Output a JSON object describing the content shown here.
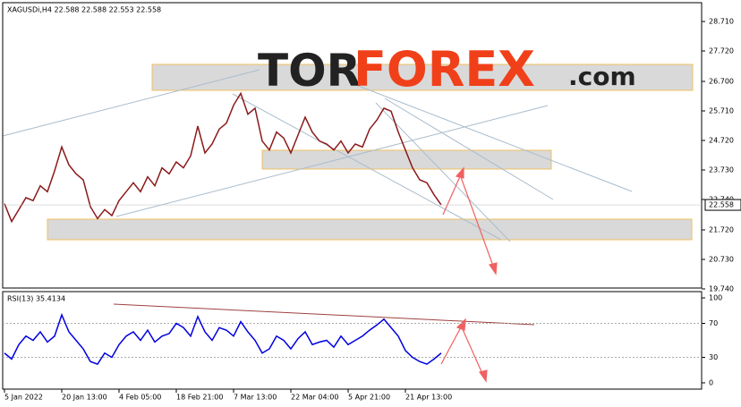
{
  "chart_data": [
    {
      "type": "line",
      "title": "XAGUSDi,H4 22.588 22.588 22.553 22.558",
      "logo": {
        "left": "TOR",
        "mid": "FOREX",
        "right": ".com"
      },
      "current_label": "22.558",
      "series": [
        {
          "name": "XAGUSDi",
          "color": "#8b1a1a",
          "values": [
            22.6,
            22.0,
            22.4,
            22.8,
            22.7,
            23.2,
            23.0,
            23.7,
            24.5,
            23.9,
            23.6,
            23.4,
            22.5,
            22.1,
            22.4,
            22.2,
            22.7,
            23.0,
            23.3,
            23.0,
            23.5,
            23.2,
            23.8,
            23.6,
            24.0,
            23.8,
            24.2,
            25.2,
            24.3,
            24.6,
            25.1,
            25.3,
            25.9,
            26.3,
            25.6,
            25.8,
            24.7,
            24.4,
            25.0,
            24.8,
            24.3,
            24.9,
            25.5,
            25.0,
            24.7,
            24.6,
            24.4,
            24.7,
            24.3,
            24.6,
            24.5,
            25.1,
            25.4,
            25.8,
            25.7,
            25.0,
            24.4,
            23.8,
            23.4,
            23.3,
            22.9,
            22.558
          ]
        }
      ],
      "ylim": [
        19.77,
        29.34
      ],
      "yticks": [
        {
          "value": 28.71,
          "label": "28.710"
        },
        {
          "value": 27.72,
          "label": "27.720"
        },
        {
          "value": 26.7,
          "label": "26.700"
        },
        {
          "value": 25.71,
          "label": "25.710"
        },
        {
          "value": 24.72,
          "label": "24.720"
        },
        {
          "value": 23.73,
          "label": "23.730"
        },
        {
          "value": 22.74,
          "label": "22.740"
        },
        {
          "value": 21.72,
          "label": "21.720"
        },
        {
          "value": 20.73,
          "label": "20.730"
        },
        {
          "value": 19.74,
          "label": "19.740"
        }
      ]
    },
    {
      "type": "line",
      "title": "RSI(13) 35.4134",
      "categories": [
        "5 Jan 2022",
        null,
        null,
        null,
        null,
        null,
        null,
        null,
        "20 Jan 13:00",
        null,
        null,
        null,
        null,
        null,
        null,
        null,
        "4 Feb 05:00",
        null,
        null,
        null,
        null,
        null,
        null,
        null,
        "18 Feb 21:00",
        null,
        null,
        null,
        null,
        null,
        null,
        null,
        "7 Mar 13:00",
        null,
        null,
        null,
        null,
        null,
        null,
        null,
        "22 Mar 04:00",
        null,
        null,
        null,
        null,
        null,
        null,
        null,
        "5 Apr 21:00",
        null,
        null,
        null,
        null,
        null,
        null,
        null,
        "21 Apr 13:00",
        null,
        null,
        null,
        null,
        null
      ],
      "series": [
        {
          "name": "RSI(13)",
          "color": "#0000e0",
          "values": [
            35,
            28,
            45,
            55,
            50,
            60,
            48,
            55,
            80,
            60,
            50,
            40,
            25,
            22,
            35,
            30,
            45,
            55,
            60,
            50,
            62,
            48,
            55,
            58,
            70,
            65,
            55,
            78,
            60,
            50,
            65,
            62,
            55,
            72,
            60,
            50,
            35,
            40,
            55,
            50,
            40,
            52,
            60,
            45,
            48,
            50,
            42,
            55,
            45,
            50,
            55,
            62,
            68,
            75,
            65,
            55,
            38,
            30,
            25,
            22,
            28,
            35
          ]
        }
      ],
      "ylim": [
        -7.4,
        107.4
      ],
      "yticks": [
        100,
        70,
        30,
        0
      ]
    }
  ]
}
